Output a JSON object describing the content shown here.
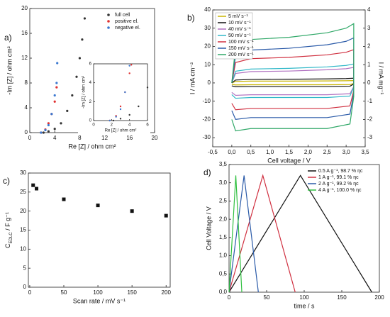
{
  "chart_data": [
    {
      "type": "scatter",
      "panel": "a)",
      "x_label": "Re [Z] / ohm cm²",
      "y_label": "-Im [Z] / ohm cm²",
      "xlim": [
        0,
        20
      ],
      "ylim": [
        0,
        20
      ],
      "xticks": [
        0,
        4,
        8,
        12,
        16,
        20
      ],
      "yticks": [
        0,
        4,
        8,
        12,
        16,
        20
      ],
      "legend": "upper right",
      "marker": "circle",
      "series": [
        {
          "name": "full cell",
          "color": "#333333",
          "x": [
            2.2,
            3,
            4,
            5,
            6,
            6.8,
            7.5,
            8,
            8.4,
            8.8
          ],
          "values": [
            0,
            0.2,
            0.6,
            1.5,
            3.5,
            6,
            9,
            12,
            15,
            18.4
          ]
        },
        {
          "name": "positive el.",
          "color": "#e03030",
          "x": [
            1.8,
            2.5,
            3,
            3.5,
            4,
            4.3
          ],
          "values": [
            0,
            0.5,
            1.5,
            3,
            5,
            7.3
          ]
        },
        {
          "name": "negative el.",
          "color": "#3a78d0",
          "x": [
            1.8,
            2.5,
            3,
            3.5,
            4,
            4.3,
            4.4
          ],
          "values": [
            0,
            0.4,
            1.2,
            3,
            6,
            8,
            11.2
          ]
        }
      ]
    },
    {
      "type": "scatter",
      "x_label": "Re [Z] / ohm cm²",
      "y_label": "-Im [Z] / ohm cm²",
      "xlim": [
        0,
        6
      ],
      "ylim": [
        0,
        6
      ],
      "xticks": [
        0,
        2,
        4,
        6
      ],
      "yticks": [
        0,
        2,
        4,
        6
      ],
      "marker": "circle",
      "series": [
        {
          "name": "full cell",
          "color": "#333333",
          "x": [
            2.2,
            3,
            4,
            5,
            6
          ],
          "values": [
            0,
            0.2,
            0.6,
            1.5,
            3.5
          ]
        },
        {
          "name": "positive el.",
          "color": "#e03030",
          "x": [
            1.8,
            2.5,
            3,
            3.5,
            4,
            4.2
          ],
          "values": [
            0,
            0.5,
            1.5,
            3,
            5,
            5.9
          ]
        },
        {
          "name": "negative el.",
          "color": "#3a78d0",
          "x": [
            1.8,
            2.5,
            3,
            3.5,
            4
          ],
          "values": [
            0,
            0.4,
            1.2,
            3,
            5.8
          ]
        }
      ]
    },
    {
      "type": "line",
      "panel": "b)",
      "x_label": "Cell voltage / V",
      "y_label": "I  / mA cm⁻²",
      "y2_label": "I  / mA mg⁻¹",
      "xlim": [
        -0.5,
        3.5
      ],
      "ylim": [
        -35,
        40
      ],
      "y2lim": [
        -3.5,
        4
      ],
      "xticks": [
        {
          "value": -0.5,
          "label": "-0,5"
        },
        {
          "value": 0,
          "label": "0,0"
        },
        {
          "value": 0.5,
          "label": "0,5"
        },
        {
          "value": 1,
          "label": "1,0"
        },
        {
          "value": 1.5,
          "label": "1,5"
        },
        {
          "value": 2,
          "label": "2,0"
        },
        {
          "value": 2.5,
          "label": "2,5"
        },
        {
          "value": 3,
          "label": "3,0"
        },
        {
          "value": 3.5,
          "label": "3,5"
        }
      ],
      "yticks": [
        -30,
        -20,
        -10,
        0,
        10,
        20,
        30,
        40
      ],
      "y2ticks": [
        -3,
        -2,
        -1,
        0,
        1,
        2,
        3,
        4
      ],
      "legend": "upper left",
      "x": [
        0,
        0.1,
        0.5,
        1.5,
        2.5,
        3,
        3.2,
        3.2,
        3.1,
        2.5,
        1.5,
        0.5,
        0.1,
        0
      ],
      "series": [
        {
          "name": "5 mV s⁻¹",
          "color": "#c8b400",
          "values": [
            0,
            0.8,
            1,
            1,
            1.1,
            1.2,
            1.3,
            -0.3,
            -0.9,
            -1,
            -1,
            -1,
            -1.1,
            -0.8
          ]
        },
        {
          "name": "10 mV s⁻¹",
          "color": "#111111",
          "values": [
            0,
            1.6,
            1.9,
            2,
            2.2,
            2.4,
            2.6,
            -0.6,
            -1.8,
            -2,
            -2,
            -2,
            -2.1,
            -1.6
          ]
        },
        {
          "name": "40 mV s⁻¹",
          "color": "#b070c0",
          "values": [
            0,
            5.2,
            6.2,
            6.5,
            7.2,
            7.8,
            8.5,
            -2,
            -5.9,
            -6.5,
            -6.5,
            -6.5,
            -6.8,
            -5.2
          ]
        },
        {
          "name": "50 mV s⁻¹",
          "color": "#30b8c8",
          "values": [
            0,
            6.4,
            7.6,
            8,
            8.8,
            9.6,
            10.4,
            -2.4,
            -7.2,
            -8,
            -8,
            -8,
            -8.4,
            -6.4
          ]
        },
        {
          "name": "100 mV s⁻¹",
          "color": "#d03040",
          "values": [
            0,
            11.2,
            13.3,
            14,
            15.4,
            16.8,
            18.2,
            -4.2,
            -12.6,
            -14,
            -14,
            -14,
            -14.7,
            -11.2
          ]
        },
        {
          "name": "150 mV s⁻¹",
          "color": "#2a5aa8",
          "values": [
            0,
            15.2,
            18,
            19,
            20.9,
            22.8,
            24.7,
            -5.7,
            -17.1,
            -19,
            -19,
            -19,
            -20,
            -15.2
          ]
        },
        {
          "name": "200 mV s⁻¹",
          "color": "#30a868",
          "values": [
            0,
            20,
            23.8,
            25,
            27.5,
            30,
            32.5,
            -7.5,
            -22.5,
            -25,
            -25,
            -25,
            -26.3,
            -20
          ]
        }
      ]
    },
    {
      "type": "scatter",
      "panel": "c)",
      "x_label": "Scan rate / mV s⁻¹",
      "y_label": [
        "C",
        "EDLC",
        " / F g⁻¹"
      ],
      "xlim": [
        -2,
        206
      ],
      "ylim": [
        0,
        30
      ],
      "xticks": [
        0,
        50,
        100,
        150,
        200
      ],
      "yticks": [
        0,
        5,
        10,
        15,
        20,
        25,
        30
      ],
      "marker": "square",
      "series": [
        {
          "color": "#111111",
          "x": [
            5,
            10,
            50,
            100,
            150,
            200
          ],
          "values": [
            26.8,
            25.9,
            23.1,
            21.5,
            20.0,
            18.8
          ]
        }
      ]
    },
    {
      "type": "line",
      "panel": "d)",
      "x_label": "time / s",
      "y_label": "Cell Voltage / V",
      "xlim": [
        0,
        200
      ],
      "ylim": [
        0,
        3.5
      ],
      "xticks": [
        0,
        50,
        100,
        150,
        200
      ],
      "yticks": [
        {
          "value": 0,
          "label": "0,0"
        },
        {
          "value": 0.5,
          "label": "0,5"
        },
        {
          "value": 1,
          "label": "1,0"
        },
        {
          "value": 1.5,
          "label": "1,5"
        },
        {
          "value": 2,
          "label": "2,0"
        },
        {
          "value": 2.5,
          "label": "2,5"
        },
        {
          "value": 3,
          "label": "3,0"
        },
        {
          "value": 3.5,
          "label": "3,5"
        }
      ],
      "legend": "upper right",
      "series": [
        {
          "name": "0.5 A g⁻¹, 98.7 % ηc",
          "color": "#111111",
          "x": [
            0,
            95,
            190
          ],
          "values": [
            0,
            3.2,
            0
          ]
        },
        {
          "name": "1 A g⁻¹,  99.1 % ηc",
          "color": "#d03040",
          "x": [
            0,
            45,
            88
          ],
          "values": [
            0,
            3.2,
            0
          ]
        },
        {
          "name": "2 A g⁻¹,  99.2 % ηc",
          "color": "#2a5aa8",
          "x": [
            0,
            20,
            39
          ],
          "values": [
            0,
            3.2,
            0
          ]
        },
        {
          "name": "4 A g⁻¹,  100.0 % ηc",
          "color": "#30c040",
          "x": [
            0,
            9,
            17
          ],
          "values": [
            0,
            3.2,
            0
          ]
        }
      ]
    }
  ]
}
